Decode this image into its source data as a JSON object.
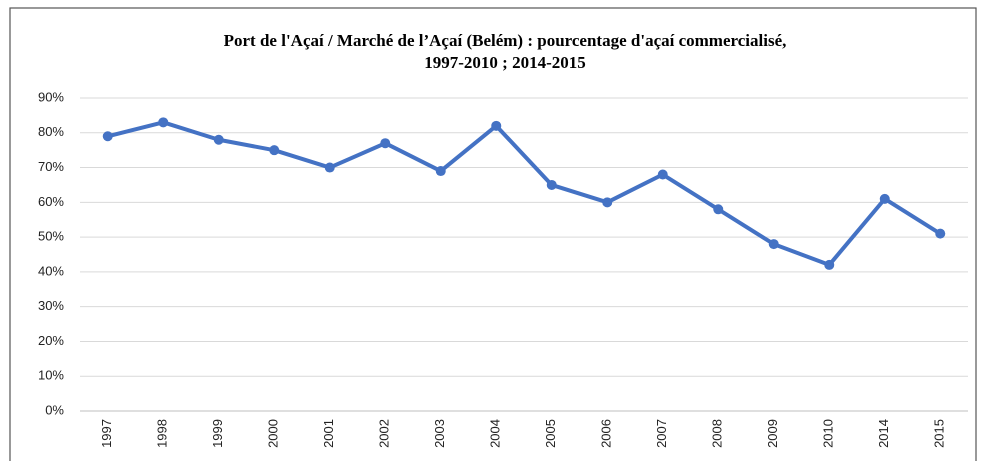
{
  "chart_data": {
    "type": "line",
    "title": [
      "Port de l'Açaí / Marché de l’Açaí (Belém) : pourcentage d'açaí commercialisé,",
      "1997-2010 ; 2014-2015"
    ],
    "categories": [
      "1997",
      "1998",
      "1999",
      "2000",
      "2001",
      "2002",
      "2003",
      "2004",
      "2005",
      "2006",
      "2007",
      "2008",
      "2009",
      "2010",
      "2014",
      "2015"
    ],
    "series": [
      {
        "color": "#4472c4",
        "values": [
          79,
          83,
          78,
          75,
          70,
          77,
          69,
          82,
          65,
          60,
          68,
          58,
          48,
          42,
          61,
          51
        ]
      }
    ],
    "ylim": [
      0,
      90
    ],
    "yticks": [
      {
        "value": 0,
        "label": "0%"
      },
      {
        "value": 10,
        "label": "10%"
      },
      {
        "value": 20,
        "label": "20%"
      },
      {
        "value": 30,
        "label": "30%"
      },
      {
        "value": 40,
        "label": "40%"
      },
      {
        "value": 50,
        "label": "50%"
      },
      {
        "value": 60,
        "label": "60%"
      },
      {
        "value": 70,
        "label": "70%"
      },
      {
        "value": 80,
        "label": "80%"
      },
      {
        "value": 90,
        "label": "90%"
      }
    ],
    "grid": true
  }
}
